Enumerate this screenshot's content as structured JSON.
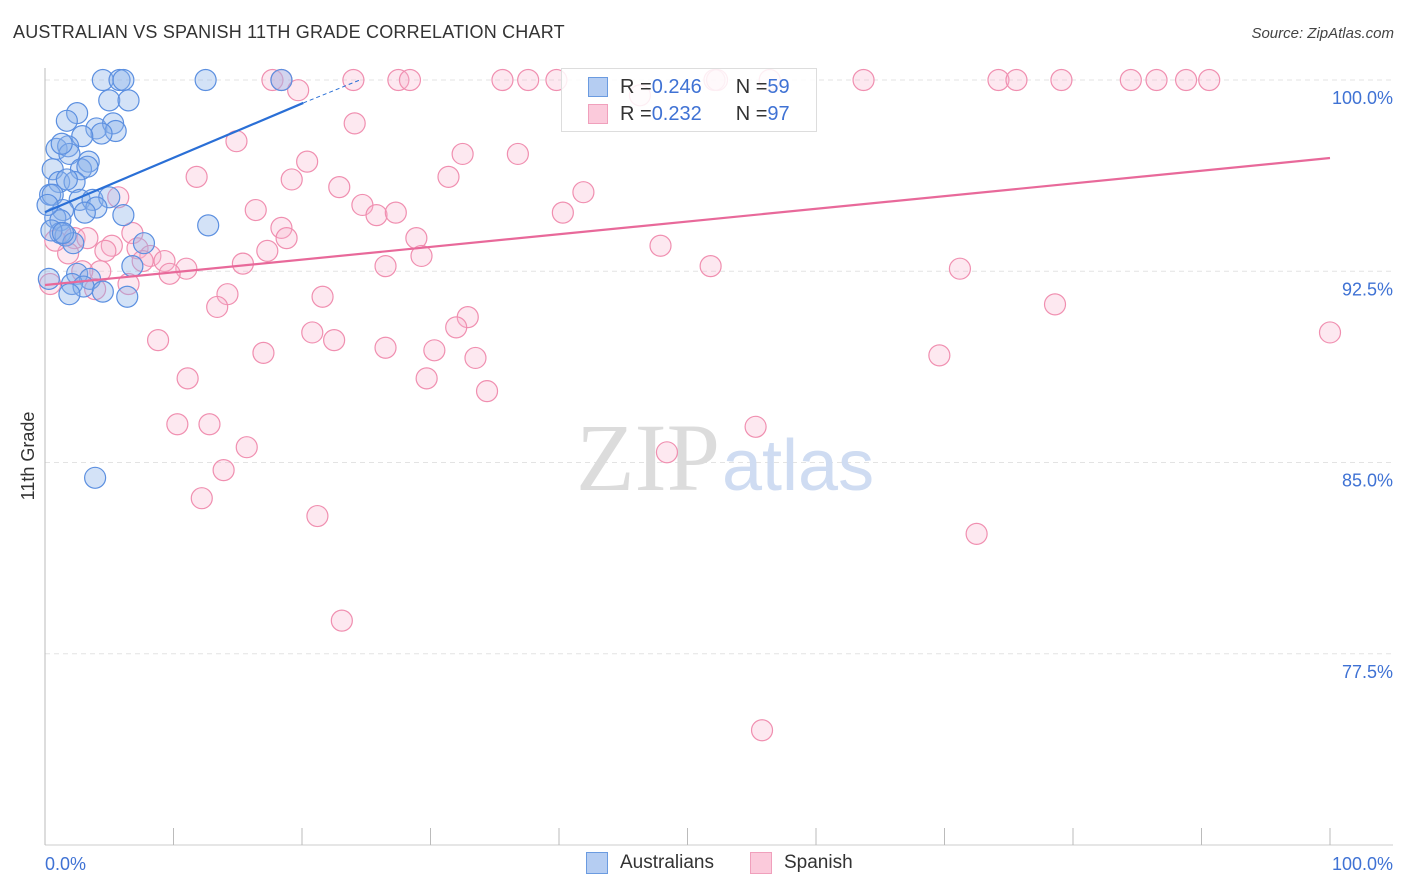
{
  "chart_data": {
    "type": "scatter",
    "title": "AUSTRALIAN VS SPANISH 11TH GRADE CORRELATION CHART",
    "source": "Source: ZipAtlas.com",
    "xlabel": "",
    "ylabel": "11th Grade",
    "xlim": [
      0,
      100
    ],
    "ylim": [
      70,
      100.5
    ],
    "x_tick_labels": [
      "0.0%",
      "100.0%"
    ],
    "y_ticks": [
      77.5,
      85.0,
      92.5,
      100.0
    ],
    "y_tick_labels": [
      "77.5%",
      "85.0%",
      "92.5%",
      "100.0%"
    ],
    "grid": true,
    "legend_placement": "top-center",
    "watermark": "ZIPatlas",
    "colors": {
      "Australians": "#5b8fe0",
      "Spanish": "#f08fb0",
      "Australians_line": "#2a6fd6",
      "Spanish_line": "#e8699a"
    },
    "legend": [
      {
        "series": "Australians",
        "r_label": "R = ",
        "r": "0.246",
        "n_label": "N = ",
        "n": "59"
      },
      {
        "series": "Spanish",
        "r_label": "R = ",
        "r": "0.232",
        "n_label": "N = ",
        "n": "97"
      }
    ],
    "series": [
      {
        "name": "Australians",
        "trend": {
          "x": [
            0,
            20.1
          ],
          "y": [
            94.82,
            99.1
          ],
          "dashed_to": [
            24.5,
            100.0
          ]
        },
        "points": [
          [
            4.5,
            100
          ],
          [
            5.8,
            100
          ],
          [
            6.1,
            100
          ],
          [
            12.5,
            100
          ],
          [
            18.4,
            100
          ],
          [
            5.0,
            99.2
          ],
          [
            6.5,
            99.2
          ],
          [
            2.5,
            98.7
          ],
          [
            1.7,
            98.4
          ],
          [
            4.0,
            98.1
          ],
          [
            5.3,
            98.3
          ],
          [
            5.5,
            98.0
          ],
          [
            4.4,
            97.9
          ],
          [
            2.9,
            97.8
          ],
          [
            0.9,
            97.3
          ],
          [
            1.8,
            97.4
          ],
          [
            1.9,
            97.1
          ],
          [
            1.3,
            97.5
          ],
          [
            3.4,
            96.8
          ],
          [
            2.8,
            96.5
          ],
          [
            3.3,
            96.6
          ],
          [
            0.6,
            96.5
          ],
          [
            1.1,
            96.0
          ],
          [
            2.3,
            96.0
          ],
          [
            1.7,
            96.1
          ],
          [
            0.4,
            95.5
          ],
          [
            0.6,
            95.5
          ],
          [
            2.7,
            95.3
          ],
          [
            3.7,
            95.3
          ],
          [
            5.0,
            95.4
          ],
          [
            1.4,
            94.9
          ],
          [
            4.0,
            95.0
          ],
          [
            3.1,
            94.8
          ],
          [
            6.1,
            94.7
          ],
          [
            0.8,
            94.6
          ],
          [
            1.2,
            94.5
          ],
          [
            12.7,
            94.3
          ],
          [
            1.2,
            94.0
          ],
          [
            1.6,
            93.9
          ],
          [
            2.2,
            93.6
          ],
          [
            7.7,
            93.6
          ],
          [
            6.8,
            92.7
          ],
          [
            2.5,
            92.4
          ],
          [
            3.5,
            92.2
          ],
          [
            2.1,
            92.0
          ],
          [
            3.0,
            91.9
          ],
          [
            4.5,
            91.7
          ],
          [
            1.9,
            91.6
          ],
          [
            6.4,
            91.5
          ],
          [
            0.3,
            92.2
          ],
          [
            3.9,
            84.4
          ],
          [
            0.2,
            95.1
          ],
          [
            0.5,
            94.1
          ],
          [
            1.4,
            94.0
          ]
        ]
      },
      {
        "name": "Spanish",
        "trend": {
          "x": [
            0,
            100
          ],
          "y": [
            91.96,
            96.94
          ]
        },
        "points": [
          [
            17.7,
            100
          ],
          [
            18.4,
            100
          ],
          [
            24.0,
            100
          ],
          [
            27.5,
            100
          ],
          [
            28.4,
            100
          ],
          [
            35.6,
            100
          ],
          [
            37.6,
            100
          ],
          [
            39.8,
            100
          ],
          [
            52.1,
            100
          ],
          [
            52.3,
            100
          ],
          [
            63.7,
            100
          ],
          [
            74.2,
            100
          ],
          [
            75.6,
            100
          ],
          [
            79.1,
            100
          ],
          [
            84.5,
            100
          ],
          [
            86.5,
            100
          ],
          [
            88.8,
            100
          ],
          [
            90.6,
            100
          ],
          [
            56.4,
            100
          ],
          [
            19.7,
            99.6
          ],
          [
            24.1,
            98.3
          ],
          [
            14.9,
            97.6
          ],
          [
            20.4,
            96.8
          ],
          [
            32.5,
            97.1
          ],
          [
            36.8,
            97.1
          ],
          [
            11.8,
            96.2
          ],
          [
            19.2,
            96.1
          ],
          [
            22.9,
            95.8
          ],
          [
            31.4,
            96.2
          ],
          [
            41.9,
            95.6
          ],
          [
            5.7,
            95.4
          ],
          [
            24.7,
            95.1
          ],
          [
            16.4,
            94.9
          ],
          [
            25.8,
            94.7
          ],
          [
            27.3,
            94.8
          ],
          [
            40.3,
            94.8
          ],
          [
            18.4,
            94.2
          ],
          [
            18.8,
            93.8
          ],
          [
            28.9,
            93.8
          ],
          [
            6.8,
            94.0
          ],
          [
            2.3,
            93.8
          ],
          [
            3.3,
            93.8
          ],
          [
            5.2,
            93.5
          ],
          [
            4.7,
            93.3
          ],
          [
            1.8,
            93.2
          ],
          [
            7.2,
            93.4
          ],
          [
            8.2,
            93.1
          ],
          [
            9.3,
            92.9
          ],
          [
            11.0,
            92.6
          ],
          [
            15.4,
            92.8
          ],
          [
            17.3,
            93.3
          ],
          [
            26.5,
            92.7
          ],
          [
            29.3,
            93.1
          ],
          [
            47.9,
            93.5
          ],
          [
            51.8,
            92.7
          ],
          [
            71.2,
            92.6
          ],
          [
            7.6,
            92.9
          ],
          [
            9.7,
            92.4
          ],
          [
            4.3,
            92.5
          ],
          [
            2.9,
            92.5
          ],
          [
            6.5,
            92.0
          ],
          [
            3.9,
            91.8
          ],
          [
            14.2,
            91.6
          ],
          [
            13.4,
            91.1
          ],
          [
            21.6,
            91.5
          ],
          [
            78.6,
            91.2
          ],
          [
            100,
            90.1
          ],
          [
            32.9,
            90.7
          ],
          [
            32.0,
            90.3
          ],
          [
            20.8,
            90.1
          ],
          [
            22.5,
            89.8
          ],
          [
            8.8,
            89.8
          ],
          [
            26.5,
            89.5
          ],
          [
            17.0,
            89.3
          ],
          [
            30.3,
            89.4
          ],
          [
            33.5,
            89.1
          ],
          [
            69.6,
            89.2
          ],
          [
            11.1,
            88.3
          ],
          [
            29.7,
            88.3
          ],
          [
            34.4,
            87.8
          ],
          [
            10.3,
            86.5
          ],
          [
            12.8,
            86.5
          ],
          [
            55.3,
            86.4
          ],
          [
            15.7,
            85.6
          ],
          [
            48.4,
            85.4
          ],
          [
            13.9,
            84.7
          ],
          [
            12.2,
            83.6
          ],
          [
            21.2,
            82.9
          ],
          [
            72.5,
            82.2
          ],
          [
            23.1,
            78.8
          ],
          [
            55.8,
            74.5
          ],
          [
            0.4,
            92.0
          ],
          [
            0.8,
            93.7
          ],
          [
            46.3,
            99.4
          ]
        ]
      }
    ]
  }
}
